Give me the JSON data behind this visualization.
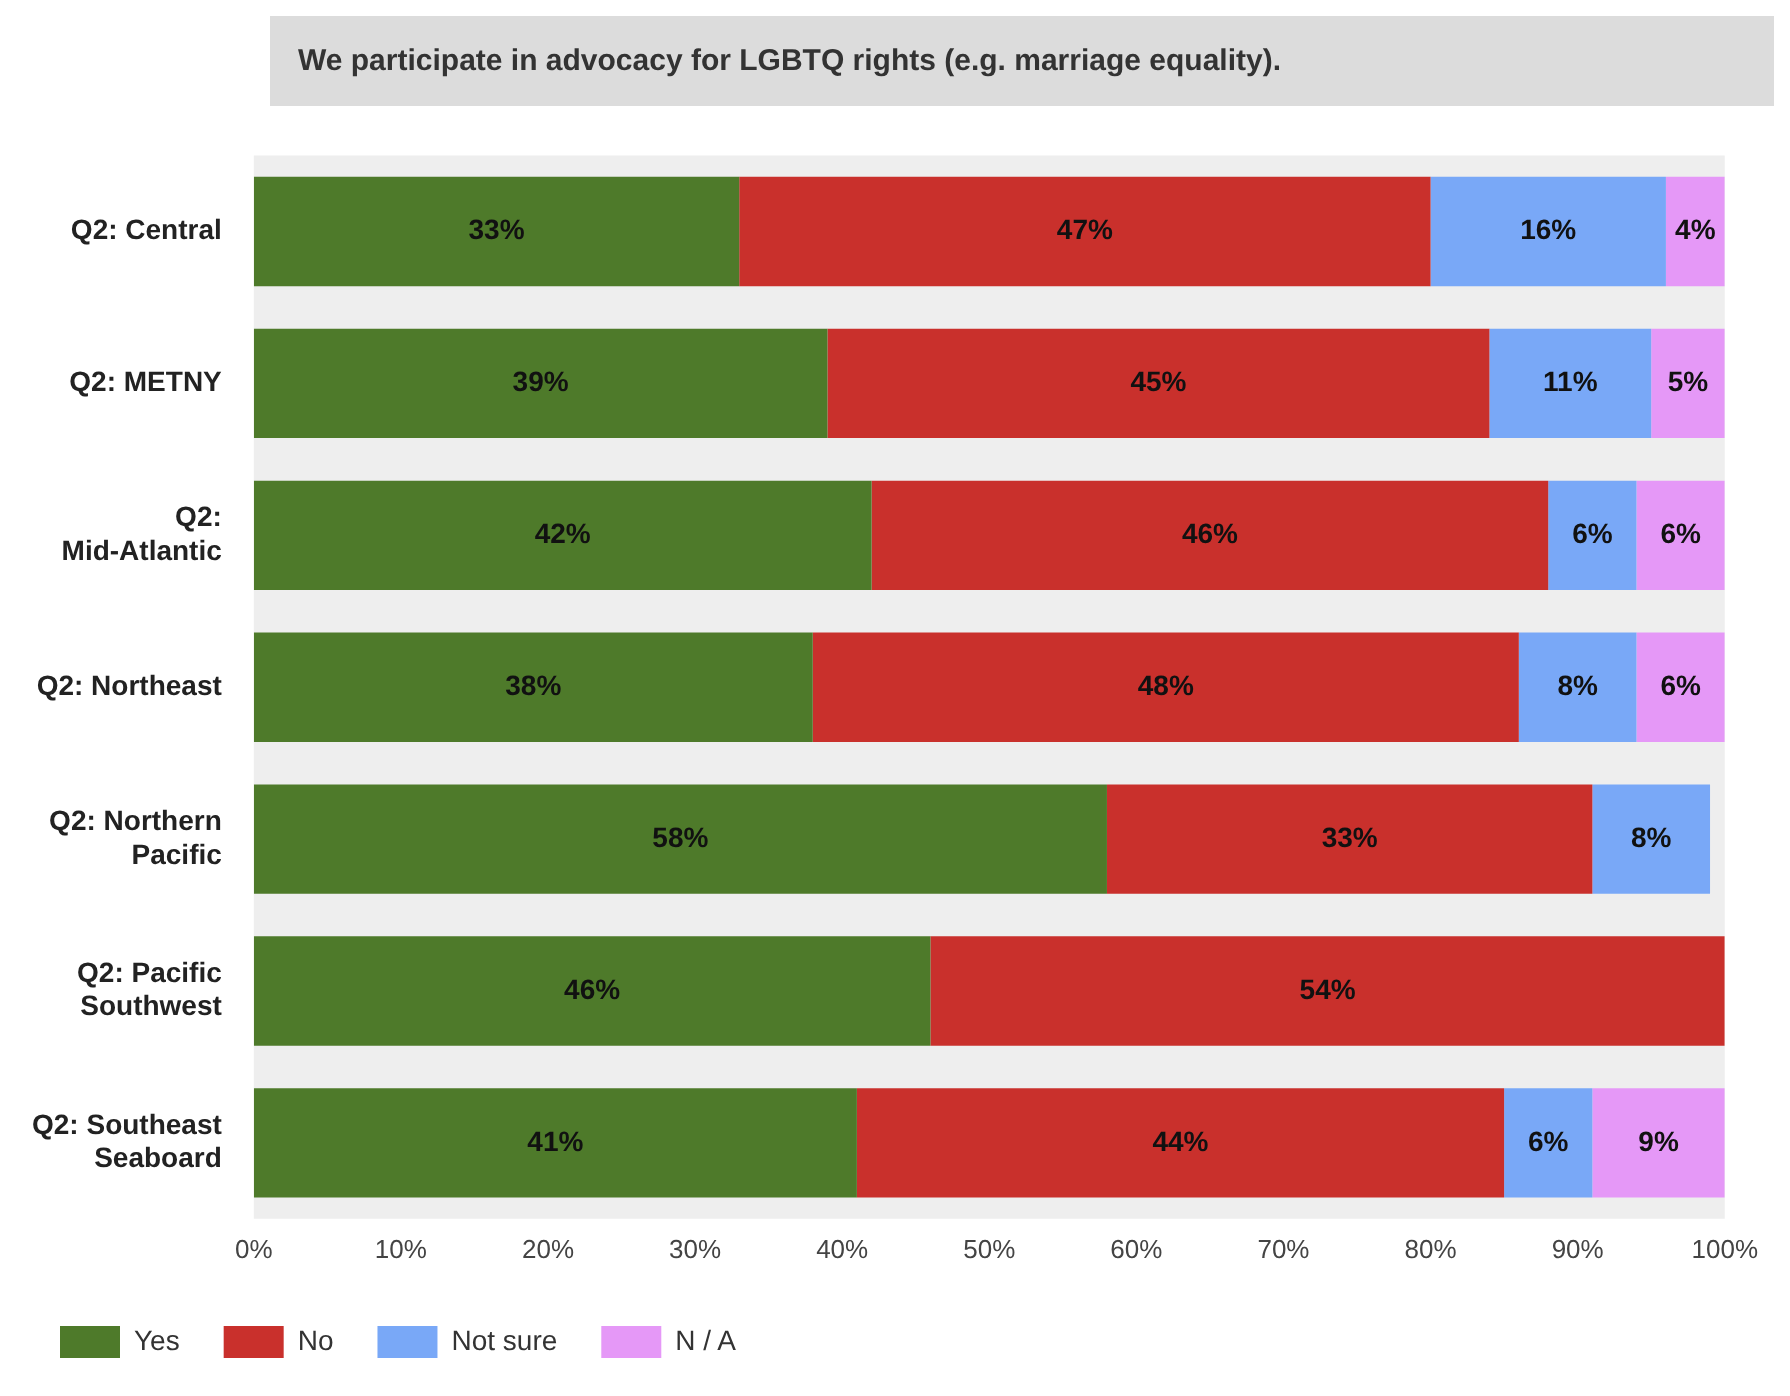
{
  "chart_data": {
    "type": "bar",
    "orientation": "horizontal",
    "stacked": true,
    "title": "We participate in advocacy for LGBTQ rights (e.g. marriage equality).",
    "categories": [
      "Q2: Central",
      "Q2: METNY",
      "Q2: Mid-Atlantic",
      "Q2: Northeast",
      "Q2: Northern Pacific",
      "Q2: Pacific Southwest",
      "Q2: Southeast Seaboard"
    ],
    "series": [
      {
        "name": "Yes",
        "color": "#4e7a2a",
        "values": [
          33,
          39,
          42,
          38,
          58,
          46,
          41
        ],
        "value_labels": [
          "33%",
          "39%",
          "42%",
          "38%",
          "58%",
          "46%",
          "41%"
        ]
      },
      {
        "name": "No",
        "color": "#c9302c",
        "values": [
          47,
          45,
          46,
          48,
          33,
          54,
          44
        ],
        "value_labels": [
          "47%",
          "45%",
          "46%",
          "48%",
          "33%",
          "54%",
          "44%"
        ]
      },
      {
        "name": "Not sure",
        "color": "#79a8f7",
        "values": [
          16,
          11,
          6,
          8,
          8,
          null,
          6
        ],
        "value_labels": [
          "16%",
          "11%",
          "6%",
          "8%",
          "8%",
          null,
          "6%"
        ]
      },
      {
        "name": "N / A",
        "color": "#e598f7",
        "values": [
          4,
          5,
          6,
          6,
          null,
          null,
          9
        ],
        "value_labels": [
          "4%",
          "5%",
          "6%",
          "6%",
          null,
          null,
          "9%"
        ]
      }
    ],
    "xlim": [
      0,
      100
    ],
    "xticks": [
      {
        "value": 0,
        "label": "0%"
      },
      {
        "value": 10,
        "label": "10%"
      },
      {
        "value": 20,
        "label": "20%"
      },
      {
        "value": 30,
        "label": "30%"
      },
      {
        "value": 40,
        "label": "40%"
      },
      {
        "value": 50,
        "label": "50%"
      },
      {
        "value": 60,
        "label": "60%"
      },
      {
        "value": 70,
        "label": "70%"
      },
      {
        "value": 80,
        "label": "80%"
      },
      {
        "value": 90,
        "label": "90%"
      },
      {
        "value": 100,
        "label": "100%"
      }
    ],
    "grid": false,
    "legend": "bottom left"
  }
}
